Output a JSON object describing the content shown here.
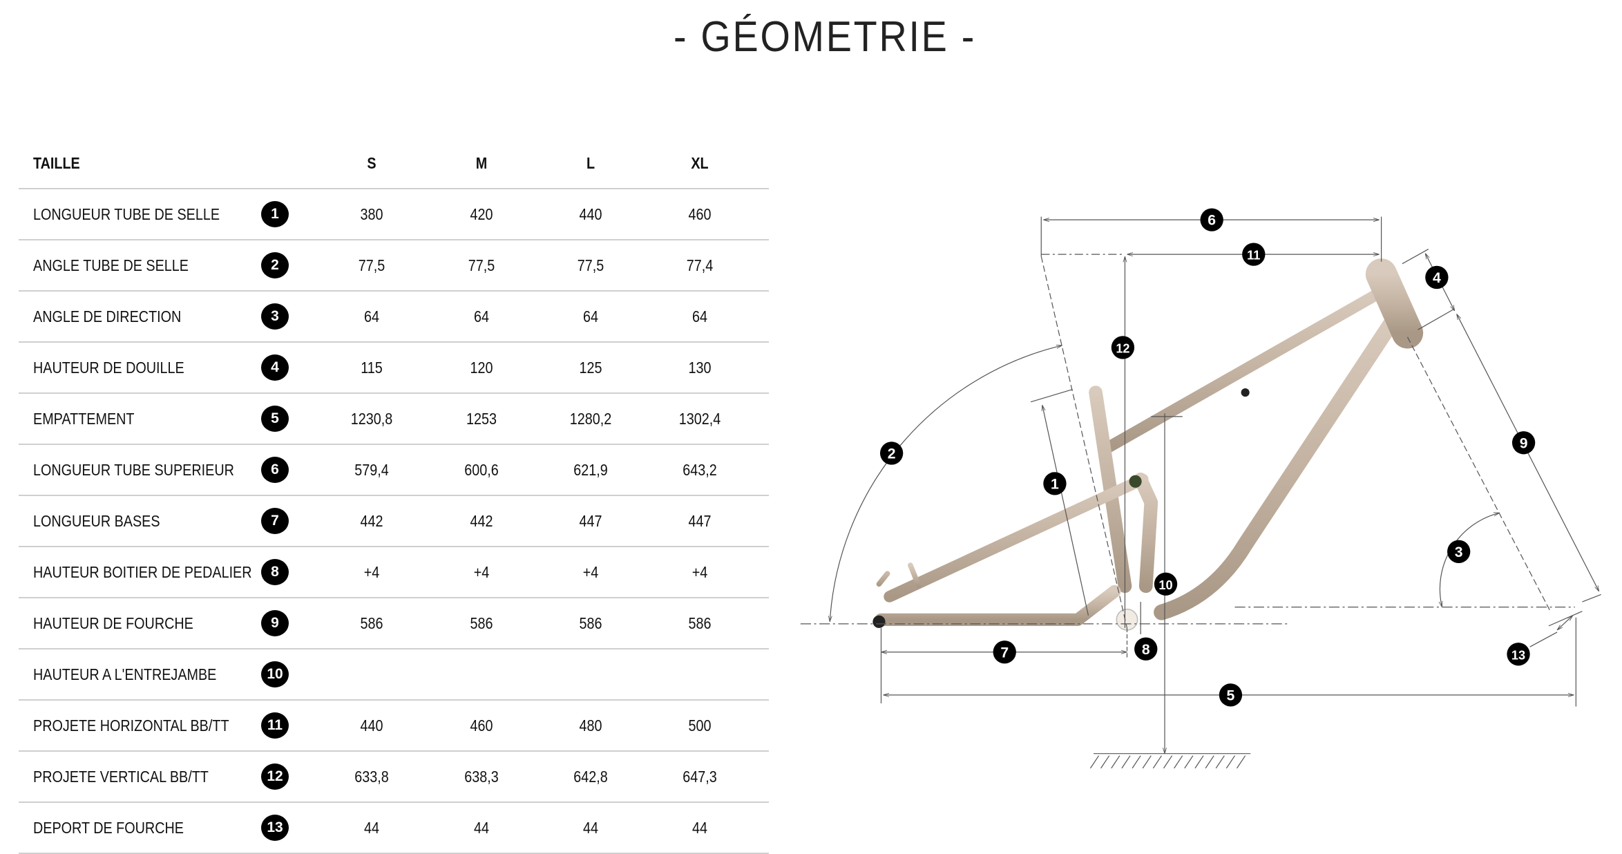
{
  "title": "- GÉOMETRIE -",
  "table": {
    "header": {
      "label": "TAILLE",
      "sizes": [
        "S",
        "M",
        "L",
        "XL"
      ]
    },
    "rows": [
      {
        "label": "LONGUEUR TUBE DE SELLE",
        "num": "1",
        "values": [
          "380",
          "420",
          "440",
          "460"
        ]
      },
      {
        "label": "ANGLE TUBE DE SELLE",
        "num": "2",
        "values": [
          "77,5",
          "77,5",
          "77,5",
          "77,4"
        ]
      },
      {
        "label": "ANGLE DE DIRECTION",
        "num": "3",
        "values": [
          "64",
          "64",
          "64",
          "64"
        ]
      },
      {
        "label": "HAUTEUR DE DOUILLE",
        "num": "4",
        "values": [
          "115",
          "120",
          "125",
          "130"
        ]
      },
      {
        "label": "EMPATTEMENT",
        "num": "5",
        "values": [
          "1230,8",
          "1253",
          "1280,2",
          "1302,4"
        ]
      },
      {
        "label": "LONGUEUR TUBE SUPERIEUR",
        "num": "6",
        "values": [
          "579,4",
          "600,6",
          "621,9",
          "643,2"
        ]
      },
      {
        "label": "LONGUEUR BASES",
        "num": "7",
        "values": [
          "442",
          "442",
          "447",
          "447"
        ]
      },
      {
        "label": "HAUTEUR BOITIER DE PEDALIER",
        "num": "8",
        "values": [
          "+4",
          "+4",
          "+4",
          "+4"
        ]
      },
      {
        "label": "HAUTEUR DE FOURCHE",
        "num": "9",
        "values": [
          "586",
          "586",
          "586",
          "586"
        ]
      },
      {
        "label": "HAUTEUR A L'ENTREJAMBE",
        "num": "10",
        "values": [
          "",
          "",
          "",
          ""
        ]
      },
      {
        "label": "PROJETE HORIZONTAL BB/TT",
        "num": "11",
        "values": [
          "440",
          "460",
          "480",
          "500"
        ]
      },
      {
        "label": "PROJETE VERTICAL BB/TT",
        "num": "12",
        "values": [
          "633,8",
          "638,3",
          "642,8",
          "647,3"
        ]
      },
      {
        "label": "DEPORT DE FOURCHE",
        "num": "13",
        "values": [
          "44",
          "44",
          "44",
          "44"
        ]
      }
    ]
  },
  "diagram": {
    "frame_color": "#cbbcad",
    "line_color": "#555555",
    "badges": [
      "1",
      "2",
      "3",
      "4",
      "5",
      "6",
      "7",
      "8",
      "9",
      "10",
      "11",
      "12",
      "13"
    ]
  }
}
